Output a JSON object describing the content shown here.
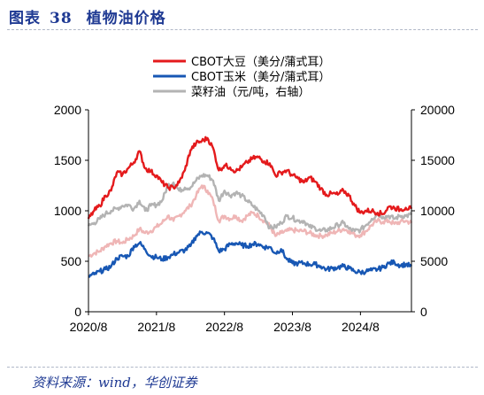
{
  "header": {
    "label": "图表",
    "number": "38",
    "title": "植物油价格"
  },
  "source": "资料来源：wind，华创证券",
  "colors": {
    "soy": "#e41a1c",
    "corn": "#1757b4",
    "rapeseed": "#b3b3b3",
    "rapeseed_faded": "#efb6b6",
    "title": "#1f3a93"
  },
  "chart_data": {
    "type": "line",
    "title": "植物油价格",
    "x_ticks": [
      "2020/8",
      "2021/8",
      "2022/8",
      "2023/8",
      "2024/8"
    ],
    "x_range": [
      "2020-08",
      "2025-05"
    ],
    "y_left": {
      "ticks": [
        "0",
        "500",
        "1000",
        "1500",
        "2000"
      ],
      "range": [
        0,
        2000
      ]
    },
    "y_right": {
      "ticks": [
        "0",
        "5000",
        "10000",
        "15000",
        "20000"
      ],
      "range": [
        0,
        20000
      ]
    },
    "legend_position": "top-center",
    "series": [
      {
        "name": "CBOT大豆（美分/蒲式耳）",
        "axis": "left",
        "color_key": "soy",
        "points": [
          [
            "2020-08",
            920
          ],
          [
            "2020-09",
            1000
          ],
          [
            "2020-10",
            1050
          ],
          [
            "2020-11",
            1150
          ],
          [
            "2020-12",
            1200
          ],
          [
            "2021-01",
            1380
          ],
          [
            "2021-02",
            1360
          ],
          [
            "2021-03",
            1420
          ],
          [
            "2021-04",
            1480
          ],
          [
            "2021-05",
            1590
          ],
          [
            "2021-06",
            1420
          ],
          [
            "2021-07",
            1390
          ],
          [
            "2021-08",
            1350
          ],
          [
            "2021-09",
            1280
          ],
          [
            "2021-10",
            1230
          ],
          [
            "2021-11",
            1230
          ],
          [
            "2021-12",
            1280
          ],
          [
            "2022-01",
            1400
          ],
          [
            "2022-02",
            1600
          ],
          [
            "2022-03",
            1670
          ],
          [
            "2022-04",
            1690
          ],
          [
            "2022-05",
            1720
          ],
          [
            "2022-06",
            1620
          ],
          [
            "2022-07",
            1400
          ],
          [
            "2022-08",
            1450
          ],
          [
            "2022-09",
            1430
          ],
          [
            "2022-10",
            1390
          ],
          [
            "2022-11",
            1430
          ],
          [
            "2022-12",
            1480
          ],
          [
            "2023-01",
            1520
          ],
          [
            "2023-02",
            1530
          ],
          [
            "2023-03",
            1490
          ],
          [
            "2023-04",
            1470
          ],
          [
            "2023-05",
            1350
          ],
          [
            "2023-06",
            1380
          ],
          [
            "2023-07",
            1400
          ],
          [
            "2023-08",
            1350
          ],
          [
            "2023-09",
            1320
          ],
          [
            "2023-10",
            1280
          ],
          [
            "2023-11",
            1330
          ],
          [
            "2023-12",
            1290
          ],
          [
            "2024-01",
            1220
          ],
          [
            "2024-02",
            1160
          ],
          [
            "2024-03",
            1170
          ],
          [
            "2024-04",
            1160
          ],
          [
            "2024-05",
            1200
          ],
          [
            "2024-06",
            1150
          ],
          [
            "2024-07",
            1050
          ],
          [
            "2024-08",
            980
          ],
          [
            "2024-09",
            1000
          ],
          [
            "2024-10",
            1000
          ],
          [
            "2024-11",
            980
          ],
          [
            "2024-12",
            970
          ],
          [
            "2025-01",
            1040
          ],
          [
            "2025-02",
            1030
          ],
          [
            "2025-03",
            1010
          ],
          [
            "2025-04",
            1030
          ],
          [
            "2025-05",
            1020
          ]
        ]
      },
      {
        "name": "CBOT玉米（美分/蒲式耳）",
        "axis": "left",
        "color_key": "corn",
        "points": [
          [
            "2020-08",
            350
          ],
          [
            "2020-09",
            370
          ],
          [
            "2020-10",
            400
          ],
          [
            "2020-11",
            420
          ],
          [
            "2020-12",
            450
          ],
          [
            "2021-01",
            530
          ],
          [
            "2021-02",
            550
          ],
          [
            "2021-03",
            550
          ],
          [
            "2021-04",
            650
          ],
          [
            "2021-05",
            680
          ],
          [
            "2021-06",
            620
          ],
          [
            "2021-07",
            550
          ],
          [
            "2021-08",
            540
          ],
          [
            "2021-09",
            520
          ],
          [
            "2021-10",
            540
          ],
          [
            "2021-11",
            570
          ],
          [
            "2021-12",
            590
          ],
          [
            "2022-01",
            610
          ],
          [
            "2022-02",
            650
          ],
          [
            "2022-03",
            750
          ],
          [
            "2022-04",
            790
          ],
          [
            "2022-05",
            780
          ],
          [
            "2022-06",
            730
          ],
          [
            "2022-07",
            600
          ],
          [
            "2022-08",
            620
          ],
          [
            "2022-09",
            670
          ],
          [
            "2022-10",
            680
          ],
          [
            "2022-11",
            660
          ],
          [
            "2022-12",
            650
          ],
          [
            "2023-01",
            670
          ],
          [
            "2023-02",
            670
          ],
          [
            "2023-03",
            640
          ],
          [
            "2023-04",
            640
          ],
          [
            "2023-05",
            580
          ],
          [
            "2023-06",
            620
          ],
          [
            "2023-07",
            520
          ],
          [
            "2023-08",
            480
          ],
          [
            "2023-09",
            480
          ],
          [
            "2023-10",
            480
          ],
          [
            "2023-11",
            470
          ],
          [
            "2023-12",
            470
          ],
          [
            "2024-01",
            450
          ],
          [
            "2024-02",
            420
          ],
          [
            "2024-03",
            430
          ],
          [
            "2024-04",
            440
          ],
          [
            "2024-05",
            450
          ],
          [
            "2024-06",
            430
          ],
          [
            "2024-07",
            400
          ],
          [
            "2024-08",
            390
          ],
          [
            "2024-09",
            400
          ],
          [
            "2024-10",
            410
          ],
          [
            "2024-11",
            420
          ],
          [
            "2024-12",
            440
          ],
          [
            "2025-01",
            480
          ],
          [
            "2025-02",
            490
          ],
          [
            "2025-03",
            460
          ],
          [
            "2025-04",
            470
          ],
          [
            "2025-05",
            450
          ]
        ]
      },
      {
        "name": "菜籽油（元/吨，右轴）",
        "axis": "right",
        "color_key": "rapeseed",
        "points": [
          [
            "2020-08",
            8500
          ],
          [
            "2020-09",
            8800
          ],
          [
            "2020-10",
            9200
          ],
          [
            "2020-11",
            9700
          ],
          [
            "2020-12",
            10000
          ],
          [
            "2021-01",
            10200
          ],
          [
            "2021-02",
            10500
          ],
          [
            "2021-03",
            10600
          ],
          [
            "2021-04",
            10200
          ],
          [
            "2021-05",
            11000
          ],
          [
            "2021-06",
            10000
          ],
          [
            "2021-07",
            10500
          ],
          [
            "2021-08",
            10600
          ],
          [
            "2021-09",
            11000
          ],
          [
            "2021-10",
            12500
          ],
          [
            "2021-11",
            12800
          ],
          [
            "2021-12",
            12000
          ],
          [
            "2022-01",
            12300
          ],
          [
            "2022-02",
            12300
          ],
          [
            "2022-03",
            13000
          ],
          [
            "2022-04",
            13500
          ],
          [
            "2022-05",
            13500
          ],
          [
            "2022-06",
            13000
          ],
          [
            "2022-07",
            11000
          ],
          [
            "2022-08",
            12000
          ],
          [
            "2022-09",
            11500
          ],
          [
            "2022-10",
            11800
          ],
          [
            "2022-11",
            11500
          ],
          [
            "2022-12",
            11000
          ],
          [
            "2023-01",
            10500
          ],
          [
            "2023-02",
            10000
          ],
          [
            "2023-03",
            9500
          ],
          [
            "2023-04",
            8300
          ],
          [
            "2023-05",
            8400
          ],
          [
            "2023-06",
            8800
          ],
          [
            "2023-07",
            9500
          ],
          [
            "2023-08",
            9300
          ],
          [
            "2023-09",
            9000
          ],
          [
            "2023-10",
            9000
          ],
          [
            "2023-11",
            8400
          ],
          [
            "2023-12",
            8300
          ],
          [
            "2024-01",
            8000
          ],
          [
            "2024-02",
            8100
          ],
          [
            "2024-03",
            8300
          ],
          [
            "2024-04",
            8600
          ],
          [
            "2024-05",
            8800
          ],
          [
            "2024-06",
            8200
          ],
          [
            "2024-07",
            8000
          ],
          [
            "2024-08",
            8100
          ],
          [
            "2024-09",
            8600
          ],
          [
            "2024-10",
            9200
          ],
          [
            "2024-11",
            9700
          ],
          [
            "2024-12",
            9400
          ],
          [
            "2025-01",
            9500
          ],
          [
            "2025-02",
            9200
          ],
          [
            "2025-03",
            9500
          ],
          [
            "2025-04",
            9500
          ],
          [
            "2025-05",
            9600
          ]
        ]
      },
      {
        "name": "",
        "axis": "right",
        "color_key": "rapeseed_faded",
        "points": [
          [
            "2020-08",
            5500
          ],
          [
            "2020-09",
            5800
          ],
          [
            "2020-10",
            6000
          ],
          [
            "2020-11",
            6500
          ],
          [
            "2020-12",
            6800
          ],
          [
            "2021-01",
            7000
          ],
          [
            "2021-02",
            6800
          ],
          [
            "2021-03",
            7200
          ],
          [
            "2021-04",
            7500
          ],
          [
            "2021-05",
            8200
          ],
          [
            "2021-06",
            7800
          ],
          [
            "2021-07",
            8000
          ],
          [
            "2021-08",
            8400
          ],
          [
            "2021-09",
            8800
          ],
          [
            "2021-10",
            9500
          ],
          [
            "2021-11",
            9000
          ],
          [
            "2021-12",
            9500
          ],
          [
            "2022-01",
            10000
          ],
          [
            "2022-02",
            10500
          ],
          [
            "2022-03",
            11500
          ],
          [
            "2022-04",
            12500
          ],
          [
            "2022-05",
            12000
          ],
          [
            "2022-06",
            11000
          ],
          [
            "2022-07",
            9000
          ],
          [
            "2022-08",
            9500
          ],
          [
            "2022-09",
            9200
          ],
          [
            "2022-10",
            9500
          ],
          [
            "2022-11",
            9000
          ],
          [
            "2022-12",
            9500
          ],
          [
            "2023-01",
            9800
          ],
          [
            "2023-02",
            9500
          ],
          [
            "2023-03",
            9000
          ],
          [
            "2023-04",
            8500
          ],
          [
            "2023-05",
            7500
          ],
          [
            "2023-06",
            7800
          ],
          [
            "2023-07",
            8000
          ],
          [
            "2023-08",
            8100
          ],
          [
            "2023-09",
            8000
          ],
          [
            "2023-10",
            8000
          ],
          [
            "2023-11",
            7800
          ],
          [
            "2023-12",
            7600
          ],
          [
            "2024-01",
            7500
          ],
          [
            "2024-02",
            7600
          ],
          [
            "2024-03",
            7800
          ],
          [
            "2024-04",
            8000
          ],
          [
            "2024-05",
            8200
          ],
          [
            "2024-06",
            8000
          ],
          [
            "2024-07",
            7600
          ],
          [
            "2024-08",
            7600
          ],
          [
            "2024-09",
            8000
          ],
          [
            "2024-10",
            8600
          ],
          [
            "2024-11",
            9000
          ],
          [
            "2024-12",
            8900
          ],
          [
            "2025-01",
            9000
          ],
          [
            "2025-02",
            8700
          ],
          [
            "2025-03",
            8900
          ],
          [
            "2025-04",
            9000
          ],
          [
            "2025-05",
            8800
          ]
        ]
      }
    ]
  }
}
